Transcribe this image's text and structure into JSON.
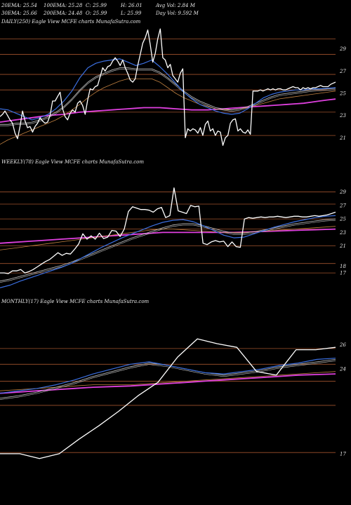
{
  "header": {
    "row1": [
      "20EMA: 25.54",
      "100EMA: 25.28",
      "C: 25.99",
      "H: 26.01",
      "Avg Vol: 2.84  M"
    ],
    "row2": [
      "30EMA: 25.66",
      "200EMA: 24.48",
      "O: 25.99",
      "L: 25.99",
      "Day Vol: 9.592  M"
    ]
  },
  "colors": {
    "background": "#000000",
    "price": "#ffffff",
    "ema_fast": "#3b6fe0",
    "ema_mid": "#c8c8c8",
    "ema_slow": "#c08040",
    "ema_long": "#e040e0",
    "level": "#a0522d"
  },
  "chart_data": [
    {
      "type": "line",
      "title": "DAILY(250) Eagle  View  MCFE charts MunafaSutra.com",
      "ylim": [
        19.5,
        31
      ],
      "yticks": [
        29,
        27,
        25,
        23,
        21
      ],
      "levels": [
        29.9,
        28.5,
        26.7,
        25.3,
        23.3,
        21.2
      ],
      "series": [
        {
          "role": "price",
          "values": [
            22.9,
            23.1,
            23.4,
            23.0,
            22.6,
            22.3,
            21.4,
            20.9,
            22.0,
            23.4,
            22.5,
            21.9,
            22.0,
            21.5,
            22.0,
            22.3,
            22.8,
            22.5,
            22.3,
            22.4,
            23.0,
            24.3,
            24.3,
            24.7,
            25.1,
            23.6,
            22.9,
            22.6,
            23.2,
            23.5,
            23.3,
            24.1,
            24.3,
            23.9,
            23.1,
            24.4,
            25.4,
            25.3,
            25.6,
            25.7,
            26.5,
            27.3,
            27.0,
            27.4,
            27.5,
            27.9,
            28.2,
            27.9,
            27.5,
            28.0,
            27.3,
            26.8,
            26.2,
            26.0,
            26.3,
            27.5,
            28.5,
            29.5,
            30.0,
            30.7,
            29.4,
            27.8,
            28.6,
            29.9,
            30.8,
            28.2,
            28.0,
            27.3,
            27.6,
            26.6,
            26.3,
            26.0,
            26.8,
            27.2,
            21.0,
            21.8,
            21.6,
            21.8,
            21.7,
            21.4,
            21.9,
            21.2,
            22.2,
            22.5,
            21.6,
            21.8,
            21.2,
            21.6,
            21.5,
            20.3,
            21.0,
            21.2,
            22.3,
            22.6,
            22.7,
            21.6,
            21.8,
            21.5,
            21.4,
            21.7,
            21.3,
            25.2,
            25.2,
            25.2,
            25.3,
            25.2,
            25.3,
            25.4,
            25.3,
            25.4,
            25.3,
            25.4,
            25.4,
            25.3,
            25.3,
            25.4,
            25.5,
            25.6,
            25.5,
            25.5,
            25.3,
            25.5,
            25.4,
            25.5,
            25.4,
            25.5,
            25.5,
            25.6,
            25.7,
            25.6,
            25.6,
            25.6,
            25.8,
            25.9,
            26.0
          ]
        },
        {
          "role": "ema20",
          "values": [
            23.6,
            23.5,
            23.2,
            22.9,
            22.6,
            22.8,
            23.1,
            23.6,
            24.3,
            25.2,
            26.4,
            27.3,
            27.7,
            27.9,
            28.0,
            28.1,
            27.8,
            27.5,
            27.7,
            28.0,
            27.4,
            26.7,
            25.9,
            25.1,
            24.5,
            24.0,
            23.7,
            23.4,
            23.2,
            23.1,
            23.2,
            23.6,
            24.1,
            24.6,
            24.9,
            25.1,
            25.2,
            25.3,
            25.3,
            25.4,
            25.4,
            25.45,
            25.5
          ]
        },
        {
          "role": "ema30",
          "values": [
            22.2,
            22.2,
            22.3,
            22.3,
            22.4,
            22.6,
            22.9,
            23.3,
            23.8,
            24.5,
            25.3,
            26.0,
            26.5,
            26.8,
            27.1,
            27.3,
            27.3,
            27.2,
            27.2,
            27.2,
            26.9,
            26.4,
            25.8,
            25.2,
            24.7,
            24.3,
            24.0,
            23.7,
            23.6,
            23.5,
            23.6,
            23.8,
            24.1,
            24.4,
            24.7,
            24.9,
            25.0,
            25.1,
            25.2,
            25.3,
            25.35,
            25.4,
            25.45
          ]
        },
        {
          "role": "ema100",
          "values": [
            20.4,
            20.8,
            21.1,
            21.4,
            21.7,
            22.0,
            22.3,
            22.6,
            23.0,
            23.5,
            24.0,
            24.6,
            25.1,
            25.5,
            25.8,
            26.1,
            26.3,
            26.3,
            26.3,
            26.3,
            26.0,
            25.5,
            25.0,
            24.6,
            24.3,
            24.0,
            23.8,
            23.6,
            23.5,
            23.5,
            23.6,
            23.7,
            23.9,
            24.1,
            24.3,
            24.5,
            24.6,
            24.7,
            24.8,
            24.9,
            25.0,
            25.1,
            25.2
          ]
        },
        {
          "role": "ema200",
          "values": [
            22.4,
            22.5,
            22.6,
            22.7,
            22.8,
            22.9,
            23.0,
            23.05,
            23.1,
            23.2,
            23.3,
            23.35,
            23.4,
            23.45,
            23.5,
            23.55,
            23.6,
            23.65,
            23.7,
            23.7,
            23.7,
            23.65,
            23.6,
            23.55,
            23.5,
            23.5,
            23.5,
            23.55,
            23.6,
            23.65,
            23.7,
            23.75,
            23.8,
            23.85,
            23.9,
            23.95,
            24.0,
            24.05,
            24.1,
            24.2,
            24.3,
            24.4,
            24.48
          ]
        }
      ]
    },
    {
      "type": "line",
      "title": "WEEKLY(78) Eagle  View  MCFE charts MunafaSutra.com",
      "ylim": [
        14,
        32.5
      ],
      "yticks": [
        29,
        27,
        25,
        23,
        21,
        18,
        17
      ],
      "levels": [
        29.0,
        27.2,
        25.0,
        23.5,
        21.0,
        18.4,
        17.0
      ],
      "series": [
        {
          "role": "price",
          "values": [
            17.0,
            17.0,
            16.9,
            17.3,
            17.3,
            17.5,
            17.0,
            17.2,
            17.5,
            17.9,
            18.3,
            18.7,
            19.0,
            19.5,
            20.0,
            19.6,
            19.9,
            19.8,
            20.5,
            21.3,
            22.8,
            22.0,
            22.5,
            22.0,
            22.9,
            22.1,
            22.3,
            23.3,
            23.2,
            22.4,
            23.5,
            26.1,
            26.8,
            26.6,
            26.4,
            26.4,
            26.3,
            26.0,
            26.5,
            26.7,
            25.2,
            25.5,
            29.6,
            26.2,
            26.0,
            25.8,
            27.0,
            26.8,
            26.9,
            21.4,
            21.2,
            21.6,
            21.8,
            21.6,
            21.7,
            20.9,
            21.6,
            20.9,
            20.8,
            25.0,
            25.2,
            25.1,
            25.2,
            25.3,
            25.2,
            25.3,
            25.3,
            25.4,
            25.3,
            25.2,
            25.3,
            25.4,
            25.4,
            25.3,
            25.3,
            25.4,
            25.5,
            25.4,
            25.5,
            25.6,
            25.8,
            26.0
          ]
        },
        {
          "role": "ema20",
          "values": [
            14.8,
            15.2,
            15.8,
            16.3,
            16.8,
            17.3,
            17.8,
            18.4,
            19.2,
            20.0,
            20.8,
            21.5,
            22.2,
            22.8,
            23.4,
            24.0,
            24.5,
            24.8,
            24.9,
            24.6,
            24.0,
            23.3,
            22.6,
            22.2,
            22.3,
            22.8,
            23.3,
            23.8,
            24.2,
            24.6,
            24.9,
            25.2,
            25.4,
            25.5
          ]
        },
        {
          "role": "ema30",
          "values": [
            15.8,
            16.1,
            16.5,
            16.9,
            17.3,
            17.7,
            18.1,
            18.6,
            19.2,
            19.8,
            20.4,
            21.0,
            21.6,
            22.2,
            22.7,
            23.2,
            23.7,
            24.1,
            24.3,
            24.3,
            24.0,
            23.6,
            23.2,
            22.9,
            22.9,
            23.1,
            23.4,
            23.7,
            24.0,
            24.3,
            24.5,
            24.7,
            24.9,
            25.0
          ]
        },
        {
          "role": "ema100",
          "values": [
            20.4,
            20.6,
            20.8,
            21.0,
            21.2,
            21.4,
            21.6,
            21.8,
            22.0,
            22.2,
            22.4,
            22.6,
            22.8,
            23.0,
            23.2,
            23.4,
            23.5,
            23.5,
            23.4,
            23.3,
            23.2,
            23.1,
            23.0,
            23.0,
            23.0,
            23.1,
            23.2,
            23.3,
            23.4,
            23.5,
            23.6,
            23.7,
            23.8,
            23.9
          ]
        },
        {
          "role": "ema200",
          "values": [
            21.4,
            21.5,
            21.6,
            21.7,
            21.8,
            21.9,
            22.0,
            22.1,
            22.2,
            22.3,
            22.4,
            22.5,
            22.6,
            22.7,
            22.8,
            22.9,
            23.0,
            23.0,
            23.0,
            23.0,
            23.0,
            23.0,
            23.0,
            23.0,
            23.05,
            23.1,
            23.15,
            23.2,
            23.25,
            23.3,
            23.35,
            23.4,
            23.45,
            23.5
          ]
        }
      ]
    },
    {
      "type": "line",
      "title": "MONTHLY(17) Eagle  View  MCFE charts MunafaSutra.com",
      "ylim": [
        14.5,
        29
      ],
      "yticks": [
        26,
        24,
        17
      ],
      "levels": [
        25.7,
        24.4,
        23.0,
        21.0,
        17.1
      ],
      "series": [
        {
          "role": "price",
          "values": [
            17.0,
            17.0,
            16.6,
            17.0,
            18.2,
            19.3,
            20.5,
            21.8,
            22.9,
            25.0,
            26.5,
            26.1,
            25.8,
            23.8,
            23.5,
            25.6,
            25.6,
            25.8
          ]
        },
        {
          "role": "ema20",
          "values": [
            22.0,
            22.2,
            22.4,
            22.7,
            23.1,
            23.6,
            24.0,
            24.4,
            24.6,
            24.3,
            24.0,
            23.7,
            23.6,
            23.8,
            24.0,
            24.3,
            24.5,
            24.8,
            24.9
          ]
        },
        {
          "role": "ema30",
          "values": [
            21.6,
            21.8,
            22.1,
            22.5,
            22.9,
            23.4,
            23.8,
            24.2,
            24.5,
            24.3,
            24.0,
            23.7,
            23.5,
            23.7,
            23.9,
            24.2,
            24.4,
            24.6,
            24.8
          ]
        },
        {
          "role": "ema100",
          "values": [
            22.2,
            22.3,
            22.4,
            22.5,
            22.6,
            22.7,
            22.7,
            22.7,
            22.8,
            22.9,
            23.0,
            23.1,
            23.2,
            23.3,
            23.4,
            23.5,
            23.6,
            23.7,
            23.8
          ]
        },
        {
          "role": "ema200",
          "values": [
            22.0,
            22.1,
            22.2,
            22.3,
            22.4,
            22.5,
            22.55,
            22.6,
            22.7,
            22.8,
            22.9,
            23.0,
            23.1,
            23.2,
            23.3,
            23.4,
            23.5,
            23.55,
            23.6
          ]
        }
      ]
    }
  ]
}
